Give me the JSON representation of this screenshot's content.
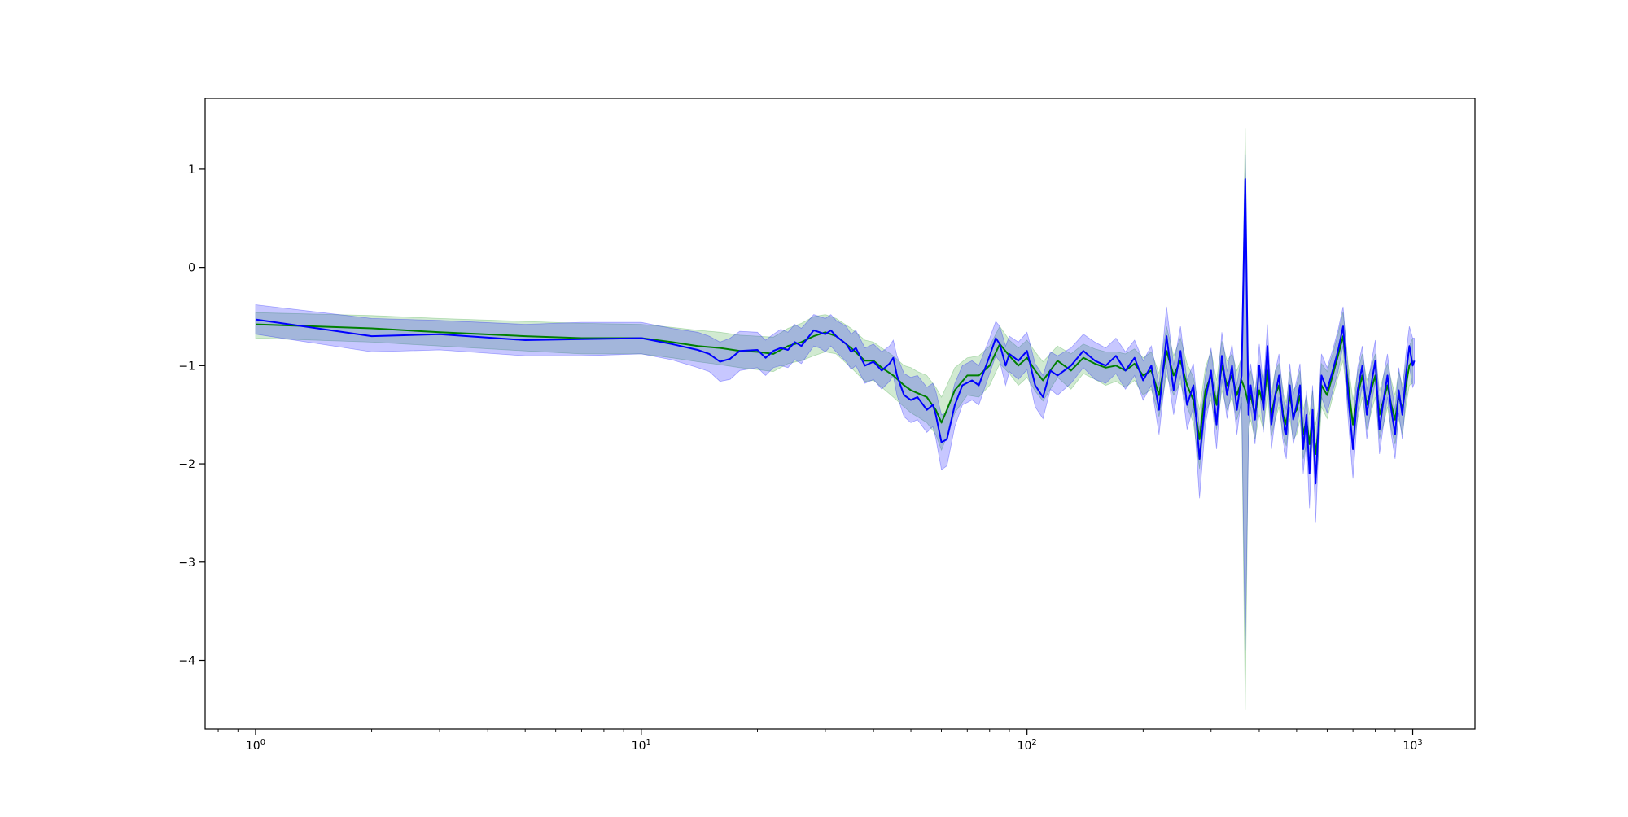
{
  "chart_data": {
    "type": "line",
    "title": "",
    "xlabel": "",
    "ylabel": "",
    "xscale": "log",
    "xlim": [
      0.74,
      1450
    ],
    "ylim": [
      -4.7,
      1.72
    ],
    "grid": false,
    "legend": "none",
    "x_ticks": [
      {
        "value": 1,
        "base": "10",
        "exp": "0"
      },
      {
        "value": 10,
        "base": "10",
        "exp": "1"
      },
      {
        "value": 100,
        "base": "10",
        "exp": "2"
      },
      {
        "value": 1000,
        "base": "10",
        "exp": "3"
      }
    ],
    "y_ticks": [
      {
        "value": 1,
        "label": "1"
      },
      {
        "value": 0,
        "label": "0"
      },
      {
        "value": -1,
        "label": "−1"
      },
      {
        "value": -2,
        "label": "−2"
      },
      {
        "value": -3,
        "label": "−3"
      },
      {
        "value": -4,
        "label": "−4"
      }
    ],
    "colors": {
      "green_line": "#008000",
      "green_band": "#2ca02c",
      "blue_line": "#0000ff",
      "blue_band": "#0000ff"
    },
    "series": [
      {
        "key": "green",
        "color": "#008000",
        "band_color": "#2ca02c",
        "x": [
          1,
          2,
          3,
          5,
          7,
          10,
          12,
          14,
          16,
          18,
          20,
          22,
          24,
          26,
          28,
          30,
          32,
          35,
          38,
          40,
          42,
          45,
          48,
          50,
          52,
          55,
          58,
          60,
          62,
          65,
          70,
          75,
          80,
          85,
          90,
          95,
          100,
          105,
          110,
          120,
          130,
          140,
          150,
          160,
          170,
          180,
          190,
          200,
          210,
          220,
          230,
          240,
          250,
          260,
          270,
          280,
          290,
          300,
          310,
          320,
          330,
          340,
          350,
          360,
          368,
          375,
          380,
          390,
          400,
          410,
          420,
          430,
          440,
          450,
          460,
          470,
          480,
          490,
          500,
          510,
          520,
          530,
          540,
          550,
          560,
          570,
          580,
          600,
          620,
          640,
          660,
          680,
          700,
          720,
          740,
          760,
          780,
          800,
          820,
          840,
          860,
          880,
          900,
          920,
          940,
          960,
          980,
          1000
        ],
        "y": [
          -0.58,
          -0.62,
          -0.66,
          -0.7,
          -0.72,
          -0.72,
          -0.76,
          -0.8,
          -0.82,
          -0.85,
          -0.86,
          -0.88,
          -0.8,
          -0.76,
          -0.7,
          -0.66,
          -0.7,
          -0.82,
          -0.95,
          -0.95,
          -1.02,
          -1.1,
          -1.2,
          -1.25,
          -1.28,
          -1.32,
          -1.45,
          -1.58,
          -1.45,
          -1.25,
          -1.1,
          -1.1,
          -1.0,
          -0.78,
          -0.9,
          -1.0,
          -0.92,
          -1.05,
          -1.15,
          -0.95,
          -1.05,
          -0.92,
          -0.98,
          -1.02,
          -1.0,
          -1.05,
          -0.98,
          -1.1,
          -1.05,
          -1.3,
          -0.85,
          -1.1,
          -0.95,
          -1.2,
          -1.35,
          -1.75,
          -1.25,
          -1.1,
          -1.4,
          -1.0,
          -1.2,
          -1.1,
          -1.3,
          -1.15,
          -1.25,
          -1.4,
          -1.3,
          -1.5,
          -1.25,
          -1.4,
          -1.05,
          -1.5,
          -1.3,
          -1.2,
          -1.45,
          -1.6,
          -1.3,
          -1.5,
          -1.45,
          -1.3,
          -1.7,
          -1.55,
          -1.8,
          -1.5,
          -1.9,
          -1.65,
          -1.2,
          -1.3,
          -1.1,
          -0.9,
          -0.7,
          -1.2,
          -1.6,
          -1.3,
          -1.1,
          -1.4,
          -1.25,
          -1.1,
          -1.5,
          -1.35,
          -1.2,
          -1.4,
          -1.55,
          -1.3,
          -1.45,
          -1.2,
          -1.0,
          -0.95
        ],
        "upper": [
          -0.46,
          -0.49,
          -0.52,
          -0.55,
          -0.57,
          -0.58,
          -0.61,
          -0.64,
          -0.66,
          -0.69,
          -0.7,
          -0.71,
          -0.62,
          -0.57,
          -0.5,
          -0.48,
          -0.52,
          -0.62,
          -0.74,
          -0.76,
          -0.82,
          -0.9,
          -1.0,
          -1.02,
          -1.06,
          -1.1,
          -1.22,
          -1.32,
          -1.2,
          -1.02,
          -0.92,
          -0.9,
          -0.8,
          -0.6,
          -0.74,
          -0.82,
          -0.74,
          -0.86,
          -0.96,
          -0.8,
          -0.88,
          -0.78,
          -0.83,
          -0.86,
          -0.86,
          -0.88,
          -0.83,
          -0.92,
          -0.86,
          -1.08,
          -0.6,
          -0.9,
          -0.72,
          -0.98,
          -1.12,
          -1.45,
          -1.02,
          -0.85,
          -1.15,
          -0.75,
          -0.95,
          -0.88,
          -1.05,
          -0.92,
          1.42,
          -1.15,
          -1.05,
          -1.25,
          -1.0,
          -1.15,
          -0.82,
          -1.28,
          -1.05,
          -0.98,
          -1.22,
          -1.38,
          -1.06,
          -1.25,
          -1.2,
          -1.05,
          -1.45,
          -1.3,
          -1.5,
          -1.25,
          -1.6,
          -1.42,
          -0.98,
          -1.06,
          -0.88,
          -0.68,
          -0.45,
          -0.98,
          -1.35,
          -1.06,
          -0.88,
          -1.15,
          -1.02,
          -0.88,
          -1.26,
          -1.1,
          -0.98,
          -1.15,
          -1.3,
          -1.06,
          -1.2,
          -0.98,
          -0.8,
          -0.72
        ],
        "lower": [
          -0.72,
          -0.76,
          -0.8,
          -0.85,
          -0.88,
          -0.88,
          -0.92,
          -0.96,
          -0.99,
          -1.02,
          -1.04,
          -1.06,
          -0.98,
          -0.95,
          -0.9,
          -0.86,
          -0.88,
          -1.02,
          -1.16,
          -1.15,
          -1.22,
          -1.32,
          -1.42,
          -1.48,
          -1.52,
          -1.58,
          -1.7,
          -1.86,
          -1.72,
          -1.48,
          -1.3,
          -1.32,
          -1.2,
          -0.98,
          -1.08,
          -1.2,
          -1.12,
          -1.26,
          -1.36,
          -1.12,
          -1.24,
          -1.08,
          -1.14,
          -1.2,
          -1.16,
          -1.22,
          -1.15,
          -1.3,
          -1.24,
          -1.52,
          -1.1,
          -1.3,
          -1.18,
          -1.42,
          -1.58,
          -2.05,
          -1.48,
          -1.35,
          -1.65,
          -1.25,
          -1.45,
          -1.32,
          -1.55,
          -1.38,
          -4.5,
          -1.65,
          -1.55,
          -1.75,
          -1.5,
          -1.65,
          -1.3,
          -1.72,
          -1.55,
          -1.42,
          -1.68,
          -1.82,
          -1.54,
          -1.75,
          -1.7,
          -1.55,
          -1.95,
          -1.8,
          -2.1,
          -1.75,
          -2.2,
          -1.9,
          -1.42,
          -1.54,
          -1.32,
          -1.12,
          -0.95,
          -1.42,
          -1.85,
          -1.54,
          -1.32,
          -1.65,
          -1.48,
          -1.32,
          -1.74,
          -1.6,
          -1.42,
          -1.65,
          -1.8,
          -1.54,
          -1.7,
          -1.42,
          -1.2,
          -1.18
        ]
      },
      {
        "key": "blue",
        "color": "#0000ff",
        "band_color": "#0000ff",
        "x": [
          1,
          2,
          3,
          5,
          7,
          10,
          12,
          14,
          15,
          16,
          17,
          18,
          20,
          21,
          22,
          23,
          24,
          25,
          26,
          28,
          29,
          30,
          31,
          32,
          34,
          35,
          36,
          38,
          40,
          42,
          44,
          45,
          46,
          48,
          50,
          52,
          55,
          57,
          58,
          60,
          62,
          65,
          68,
          72,
          75,
          80,
          83,
          85,
          88,
          90,
          95,
          100,
          105,
          110,
          115,
          120,
          130,
          140,
          150,
          160,
          170,
          180,
          190,
          200,
          210,
          220,
          230,
          240,
          250,
          260,
          270,
          280,
          290,
          300,
          310,
          320,
          330,
          340,
          350,
          360,
          368,
          375,
          380,
          390,
          400,
          410,
          420,
          430,
          440,
          450,
          460,
          470,
          480,
          490,
          500,
          510,
          520,
          530,
          540,
          550,
          560,
          570,
          580,
          600,
          620,
          640,
          660,
          680,
          700,
          720,
          740,
          760,
          780,
          800,
          820,
          840,
          860,
          880,
          900,
          920,
          940,
          960,
          980,
          1000,
          1010
        ],
        "y": [
          -0.53,
          -0.7,
          -0.68,
          -0.74,
          -0.73,
          -0.72,
          -0.78,
          -0.84,
          -0.88,
          -0.96,
          -0.93,
          -0.85,
          -0.84,
          -0.92,
          -0.85,
          -0.82,
          -0.84,
          -0.76,
          -0.8,
          -0.64,
          -0.66,
          -0.68,
          -0.64,
          -0.7,
          -0.78,
          -0.86,
          -0.82,
          -1.0,
          -0.96,
          -1.05,
          -0.98,
          -0.92,
          -1.1,
          -1.3,
          -1.35,
          -1.32,
          -1.45,
          -1.4,
          -1.5,
          -1.78,
          -1.75,
          -1.4,
          -1.2,
          -1.15,
          -1.2,
          -0.9,
          -0.72,
          -0.78,
          -1.0,
          -0.88,
          -0.95,
          -0.85,
          -1.2,
          -1.32,
          -1.05,
          -1.1,
          -1.0,
          -0.85,
          -0.95,
          -1.0,
          -0.9,
          -1.05,
          -0.92,
          -1.15,
          -1.0,
          -1.45,
          -0.7,
          -1.25,
          -0.85,
          -1.4,
          -1.2,
          -1.95,
          -1.35,
          -1.05,
          -1.6,
          -0.9,
          -1.3,
          -1.0,
          -1.45,
          -1.1,
          0.9,
          -1.5,
          -1.2,
          -1.55,
          -1.0,
          -1.45,
          -0.8,
          -1.6,
          -1.3,
          -1.1,
          -1.5,
          -1.7,
          -1.2,
          -1.55,
          -1.4,
          -1.2,
          -1.85,
          -1.5,
          -2.1,
          -1.45,
          -2.2,
          -1.6,
          -1.1,
          -1.25,
          -1.05,
          -0.85,
          -0.6,
          -1.3,
          -1.85,
          -1.25,
          -1.0,
          -1.5,
          -1.2,
          -0.95,
          -1.65,
          -1.35,
          -1.1,
          -1.45,
          -1.7,
          -1.25,
          -1.5,
          -1.1,
          -0.8,
          -1.0,
          -0.95
        ],
        "upper": [
          -0.38,
          -0.52,
          -0.54,
          -0.58,
          -0.56,
          -0.56,
          -0.62,
          -0.66,
          -0.7,
          -0.76,
          -0.72,
          -0.65,
          -0.66,
          -0.74,
          -0.68,
          -0.63,
          -0.66,
          -0.58,
          -0.62,
          -0.48,
          -0.5,
          -0.52,
          -0.48,
          -0.54,
          -0.6,
          -0.68,
          -0.64,
          -0.82,
          -0.78,
          -0.86,
          -0.8,
          -0.74,
          -0.9,
          -1.08,
          -1.12,
          -1.1,
          -1.22,
          -1.18,
          -1.26,
          -1.5,
          -1.48,
          -1.18,
          -1.0,
          -0.95,
          -1.0,
          -0.72,
          -0.55,
          -0.6,
          -0.8,
          -0.7,
          -0.76,
          -0.66,
          -0.98,
          -1.1,
          -0.86,
          -0.9,
          -0.82,
          -0.68,
          -0.76,
          -0.82,
          -0.72,
          -0.86,
          -0.74,
          -0.95,
          -0.8,
          -1.2,
          -0.4,
          -1.0,
          -0.6,
          -1.15,
          -0.98,
          -1.65,
          -1.1,
          -0.82,
          -1.35,
          -0.66,
          -1.06,
          -0.78,
          -1.2,
          -0.88,
          1.15,
          -1.25,
          -0.98,
          -1.3,
          -0.78,
          -1.22,
          -0.58,
          -1.35,
          -1.06,
          -0.88,
          -1.26,
          -1.45,
          -0.98,
          -1.3,
          -1.15,
          -0.98,
          -1.6,
          -1.25,
          -1.8,
          -1.2,
          -1.9,
          -1.35,
          -0.88,
          -1.02,
          -0.84,
          -0.64,
          -0.4,
          -1.06,
          -1.58,
          -1.02,
          -0.8,
          -1.25,
          -0.98,
          -0.74,
          -1.4,
          -1.1,
          -0.88,
          -1.2,
          -1.45,
          -1.02,
          -1.25,
          -0.88,
          -0.6,
          -0.72,
          -0.72
        ],
        "lower": [
          -0.68,
          -0.86,
          -0.84,
          -0.9,
          -0.9,
          -0.88,
          -0.94,
          -1.02,
          -1.06,
          -1.16,
          -1.14,
          -1.05,
          -1.02,
          -1.1,
          -1.02,
          -1.0,
          -1.02,
          -0.94,
          -0.98,
          -0.8,
          -0.82,
          -0.86,
          -0.8,
          -0.86,
          -0.96,
          -1.04,
          -1.0,
          -1.18,
          -1.14,
          -1.24,
          -1.16,
          -1.1,
          -1.3,
          -1.52,
          -1.58,
          -1.55,
          -1.68,
          -1.62,
          -1.74,
          -2.06,
          -2.02,
          -1.62,
          -1.4,
          -1.35,
          -1.4,
          -1.08,
          -0.9,
          -0.96,
          -1.2,
          -1.06,
          -1.14,
          -1.04,
          -1.42,
          -1.54,
          -1.24,
          -1.3,
          -1.18,
          -1.02,
          -1.14,
          -1.18,
          -1.08,
          -1.24,
          -1.1,
          -1.35,
          -1.2,
          -1.7,
          -1.0,
          -1.5,
          -1.1,
          -1.65,
          -1.42,
          -2.35,
          -1.6,
          -1.28,
          -1.85,
          -1.14,
          -1.54,
          -1.22,
          -1.7,
          -1.32,
          -3.9,
          -1.75,
          -1.42,
          -1.8,
          -1.22,
          -1.68,
          -1.02,
          -1.85,
          -1.54,
          -1.32,
          -1.74,
          -1.95,
          -1.42,
          -1.8,
          -1.65,
          -1.42,
          -2.1,
          -1.75,
          -2.45,
          -1.7,
          -2.6,
          -1.85,
          -1.32,
          -1.48,
          -1.26,
          -1.06,
          -0.8,
          -1.54,
          -2.15,
          -1.48,
          -1.2,
          -1.75,
          -1.42,
          -1.16,
          -1.9,
          -1.6,
          -1.32,
          -1.7,
          -1.95,
          -1.48,
          -1.75,
          -1.32,
          -1.0,
          -1.22,
          -1.18
        ]
      }
    ]
  }
}
